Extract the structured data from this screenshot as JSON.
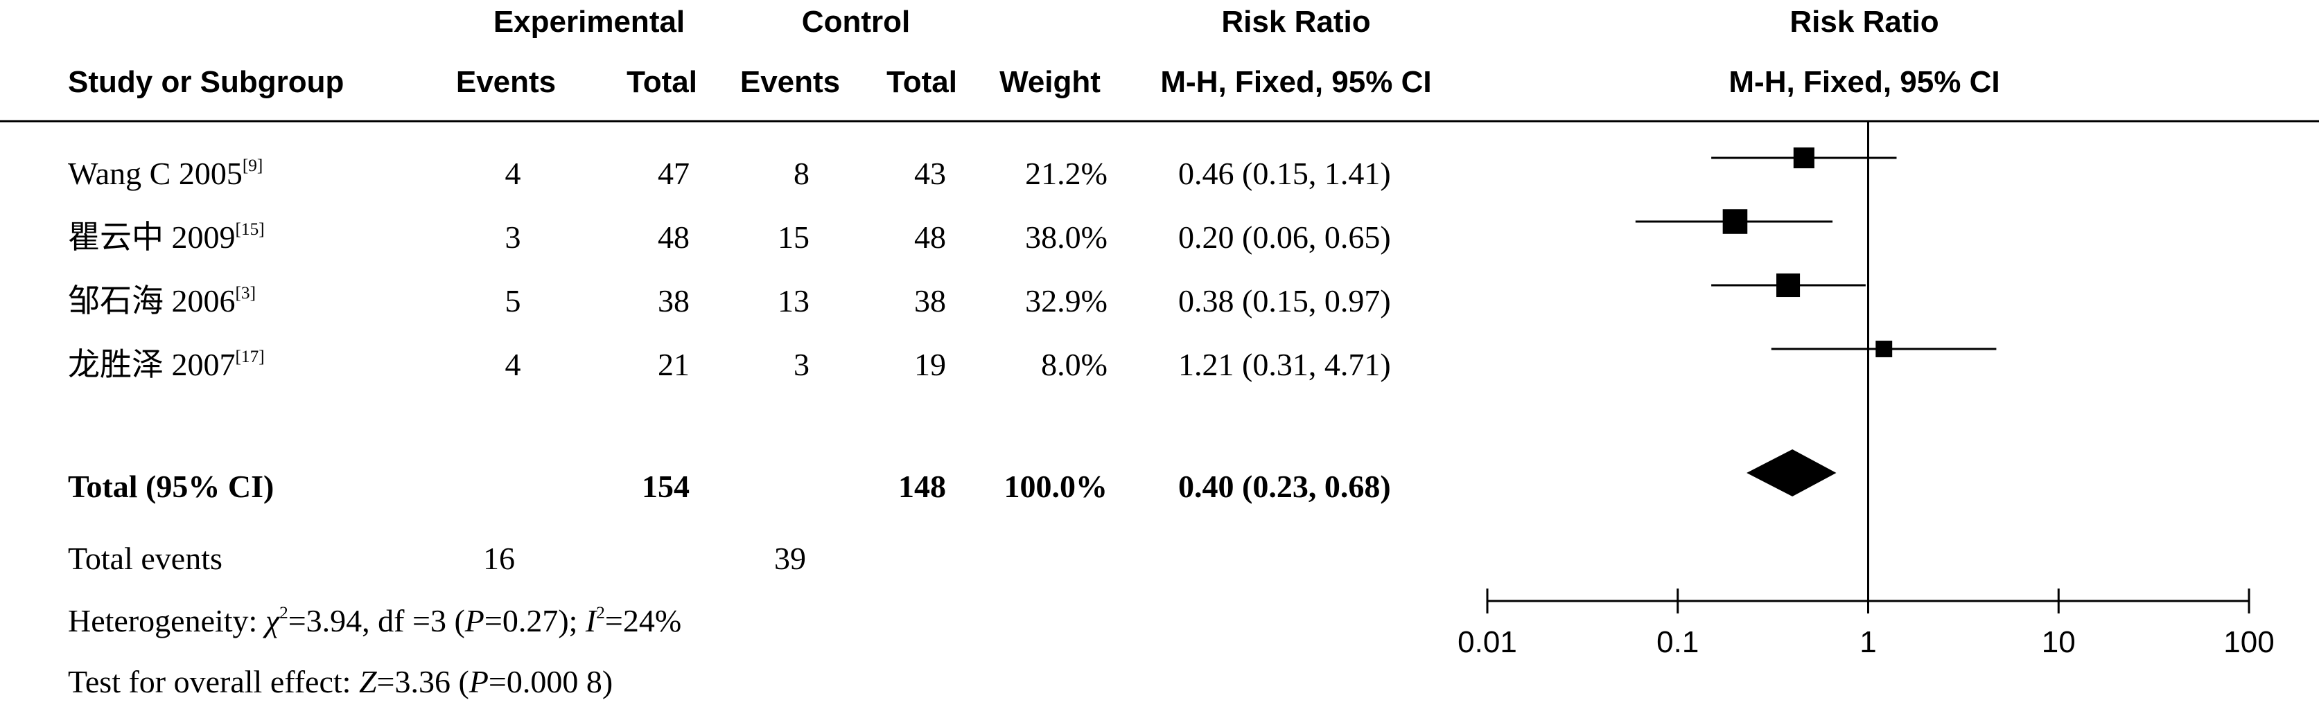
{
  "headers": {
    "group1": "Experimental",
    "group2": "Control",
    "rr_top": "Risk Ratio",
    "rr_sub": "M-H, Fixed, 95% CI",
    "plot_top": "Risk Ratio",
    "plot_sub": "M-H, Fixed, 95% CI",
    "study": "Study or Subgroup",
    "events1": "Events",
    "total1": "Total",
    "events2": "Events",
    "total2": "Total",
    "weight": "Weight"
  },
  "rows": [
    {
      "study": "Wang C 2005",
      "ref": "[9]",
      "e1": "4",
      "t1": "47",
      "e2": "8",
      "t2": "43",
      "weight": "21.2%",
      "rr": "0.46 (0.15, 1.41)"
    },
    {
      "study": "瞿云中 2009",
      "ref": "[15]",
      "e1": "3",
      "t1": "48",
      "e2": "15",
      "t2": "48",
      "weight": "38.0%",
      "rr": "0.20 (0.06, 0.65)"
    },
    {
      "study": "邹石海 2006",
      "ref": "[3]",
      "e1": "5",
      "t1": "38",
      "e2": "13",
      "t2": "38",
      "weight": "32.9%",
      "rr": "0.38 (0.15, 0.97)"
    },
    {
      "study": "龙胜泽 2007",
      "ref": "[17]",
      "e1": "4",
      "t1": "21",
      "e2": "3",
      "t2": "19",
      "weight": "8.0%",
      "rr": "1.21 (0.31, 4.71)"
    }
  ],
  "total": {
    "label": "Total (95% CI)",
    "t1": "154",
    "t2": "148",
    "weight": "100.0%",
    "rr": "0.40 (0.23, 0.68)"
  },
  "total_events": {
    "label": "Total events",
    "e1": "16",
    "e2": "39"
  },
  "heterogeneity": {
    "prefix": "Heterogeneity: ",
    "chi": "χ",
    "chi_sup": "2",
    "chi_val": "=3.94, df =3 (",
    "p": "P",
    "p_val": "=0.27); ",
    "i": "I",
    "i_sup": "2",
    "i_val": "=24%"
  },
  "overall": {
    "prefix": "Test for overall effect: ",
    "z": "Z",
    "z_val": "=3.36 (",
    "p": "P",
    "p_val": "=0.000 8)"
  },
  "chart_data": {
    "type": "forest",
    "scale": "log",
    "xlim": [
      0.01,
      100
    ],
    "ticks": [
      0.01,
      0.1,
      1,
      10,
      100
    ],
    "tick_labels": [
      "0.01",
      "0.1",
      "1",
      "10",
      "100"
    ],
    "null_value": 1,
    "studies": [
      {
        "name": "Wang C 2005",
        "rr": 0.46,
        "lo": 0.15,
        "hi": 1.41,
        "weight": 21.2
      },
      {
        "name": "瞿云中 2009",
        "rr": 0.2,
        "lo": 0.06,
        "hi": 0.65,
        "weight": 38.0
      },
      {
        "name": "邹石海 2006",
        "rr": 0.38,
        "lo": 0.15,
        "hi": 0.97,
        "weight": 32.9
      },
      {
        "name": "龙胜泽 2007",
        "rr": 1.21,
        "lo": 0.31,
        "hi": 4.71,
        "weight": 8.0
      }
    ],
    "pooled": {
      "rr": 0.4,
      "lo": 0.23,
      "hi": 0.68
    }
  },
  "colors": {
    "ink": "#000000",
    "background": "#ffffff"
  }
}
